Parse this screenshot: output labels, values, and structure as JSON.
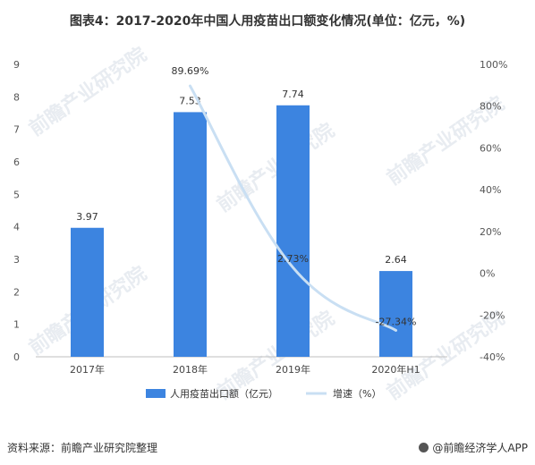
{
  "title": "图表4：2017-2020年中国人用疫苗出口额变化情况(单位：亿元，%)",
  "chart_data": {
    "type": "bar",
    "categories": [
      "2017年",
      "2018年",
      "2019年",
      "2020年H1"
    ],
    "series": [
      {
        "name": "人用疫苗出口额（亿元）",
        "type": "bar",
        "axis": "left",
        "values": [
          3.97,
          7.53,
          7.74,
          2.64
        ],
        "labels": [
          "3.97",
          "7.53",
          "7.74",
          "2.64"
        ],
        "color": "#3c84e0"
      },
      {
        "name": "增速（%）",
        "type": "line",
        "axis": "right",
        "values": [
          null,
          89.69,
          2.73,
          -27.34
        ],
        "labels": [
          "",
          "89.69%",
          "2.73%",
          "-27.34%"
        ],
        "color": "#c9dff3"
      }
    ],
    "y_left": {
      "min": 0,
      "max": 9,
      "ticks": [
        "0",
        "1",
        "2",
        "3",
        "4",
        "5",
        "6",
        "7",
        "8",
        "9"
      ]
    },
    "y_right": {
      "min": -40,
      "max": 100,
      "ticks": [
        "-40%",
        "-20%",
        "0%",
        "20%",
        "40%",
        "60%",
        "80%",
        "100%"
      ]
    },
    "legend_position": "bottom",
    "grid": false
  },
  "watermark_text": "前瞻产业研究院",
  "footer": {
    "source": "资料来源：前瞻产业研究院整理",
    "brand": "@前瞻经济学人APP"
  }
}
